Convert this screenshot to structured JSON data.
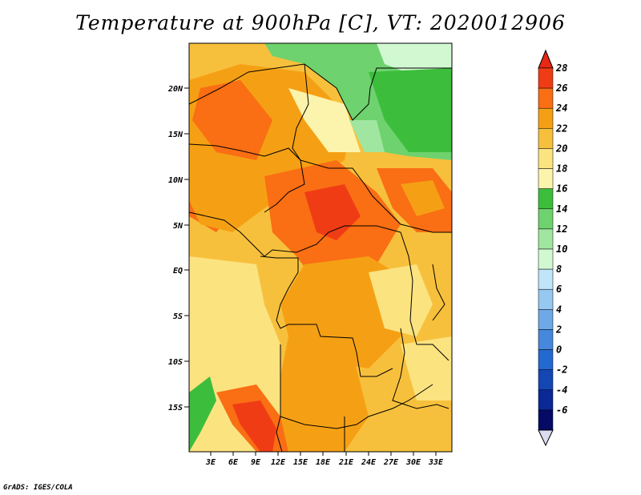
{
  "title": "Temperature at 900hPa [C], VT: 2020012906",
  "credit": "GrADS: IGES/COLA",
  "lat_labels": [
    "20N",
    "15N",
    "10N",
    "5N",
    "EQ",
    "5S",
    "10S",
    "15S"
  ],
  "lon_labels": [
    "3E",
    "6E",
    "9E",
    "12E",
    "15E",
    "18E",
    "21E",
    "24E",
    "27E",
    "30E",
    "33E"
  ],
  "colorbar": {
    "labels": [
      "28",
      "26",
      "24",
      "22",
      "20",
      "18",
      "16",
      "14",
      "12",
      "10",
      "8",
      "6",
      "4",
      "2",
      "0",
      "-2",
      "-4",
      "-6"
    ],
    "colors": [
      "#f03c14",
      "#fa6e14",
      "#f5a014",
      "#f7c03c",
      "#fbe380",
      "#fcf4ac",
      "#3cbe3c",
      "#6ed26e",
      "#a0e6a0",
      "#d2f8d2",
      "#c0e4f8",
      "#96c8f0",
      "#6ea8e6",
      "#4688dc",
      "#2468d2",
      "#1446b4",
      "#0a2896",
      "#050a64"
    ],
    "top_color": "#e62814",
    "bottom_color": "#dcdcf0"
  }
}
